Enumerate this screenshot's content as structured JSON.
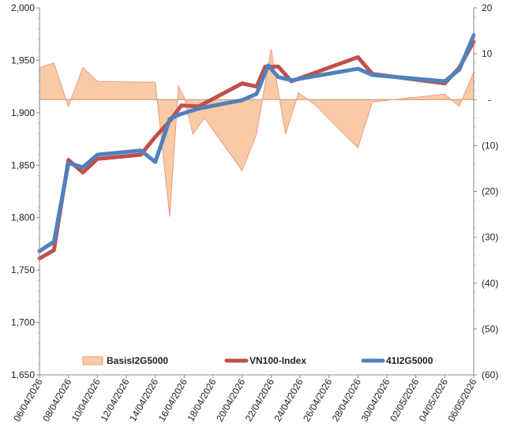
{
  "chart_data": {
    "type": "line",
    "dual_axis": true,
    "x_ticks": [
      "06/04/2026",
      "08/04/2026",
      "10/04/2026",
      "12/04/2026",
      "14/04/2026",
      "16/04/2026",
      "18/04/2026",
      "20/04/2026",
      "22/04/2026",
      "24/04/2026",
      "26/04/2026",
      "28/04/2026",
      "30/04/2026",
      "02/05/2026",
      "04/05/2026",
      "06/05/2026"
    ],
    "x_range": [
      "06/04/2026",
      "06/05/2026"
    ],
    "y_left": {
      "min": 1650,
      "max": 2000,
      "step": 50,
      "tick_labels": [
        "1,650",
        "1,700",
        "1,750",
        "1,800",
        "1,850",
        "1,900",
        "1,950",
        "2,000"
      ]
    },
    "y_right": {
      "min": -60,
      "max": 20,
      "step": 10,
      "tick_labels": [
        "(60)",
        "(50)",
        "(40)",
        "(30)",
        "(20)",
        "(10)",
        "-",
        "10",
        "20"
      ]
    },
    "grid": false,
    "legend_position": "bottom-inside",
    "series": [
      {
        "name": "BasisI2G5000",
        "kind": "area",
        "axis": "right",
        "color": "#f8cba6",
        "edge_color": "#e89c80",
        "points": [
          [
            "06/04/2026",
            7
          ],
          [
            "07/04/2026",
            8
          ],
          [
            "08/04/2026",
            -1.5
          ],
          [
            "09/04/2026",
            7
          ],
          [
            "10/04/2026",
            4
          ],
          [
            "13/04/2026",
            3.8
          ],
          [
            "14/04/2026",
            3.8
          ],
          [
            "15/04/2026",
            -25.5
          ],
          [
            "15.6/04/2026",
            3
          ],
          [
            "16/04/2026",
            0.5
          ],
          [
            "16.6/04/2026",
            -7.5
          ],
          [
            "17.4/04/2026",
            -4
          ],
          [
            "20/04/2026",
            -15.5
          ],
          [
            "21/04/2026",
            -7.5
          ],
          [
            "22/04/2026",
            11
          ],
          [
            "23/04/2026",
            -7.5
          ],
          [
            "23.9/04/2026",
            1.5
          ],
          [
            "25/04/2026",
            -1
          ],
          [
            "28/04/2026",
            -10.5
          ],
          [
            "29/04/2026",
            -0.5
          ],
          [
            "04/05/2026",
            1.2
          ],
          [
            "05/05/2026",
            -1.5
          ],
          [
            "06/05/2026",
            6
          ]
        ]
      },
      {
        "name": "VN100-Index",
        "kind": "line",
        "axis": "left",
        "color": "#c0504d",
        "points": [
          [
            "06/04/2026",
            1761
          ],
          [
            "07/04/2026",
            1769
          ],
          [
            "08/04/2026",
            1855
          ],
          [
            "09/04/2026",
            1843
          ],
          [
            "10/04/2026",
            1856
          ],
          [
            "13/04/2026",
            1860
          ],
          [
            "14/04/2026",
            1877
          ],
          [
            "15/04/2026",
            1892
          ],
          [
            "15.8/04/2026",
            1907
          ],
          [
            "17/04/2026",
            1906
          ],
          [
            "20/04/2026",
            1928
          ],
          [
            "21/04/2026",
            1925
          ],
          [
            "21.6/04/2026",
            1944
          ],
          [
            "22.5/04/2026",
            1944
          ],
          [
            "23.4/04/2026",
            1930
          ],
          [
            "28/04/2026",
            1953
          ],
          [
            "29/04/2026",
            1937
          ],
          [
            "04/05/2026",
            1928
          ],
          [
            "05/05/2026",
            1943
          ],
          [
            "06/05/2026",
            1968
          ]
        ]
      },
      {
        "name": "41I2G5000",
        "kind": "line",
        "axis": "left",
        "color": "#4f81bd",
        "points": [
          [
            "06/04/2026",
            1768
          ],
          [
            "07/04/2026",
            1777
          ],
          [
            "08/04/2026",
            1852
          ],
          [
            "09/04/2026",
            1848
          ],
          [
            "10/04/2026",
            1860
          ],
          [
            "13/04/2026",
            1864
          ],
          [
            "14/04/2026",
            1853
          ],
          [
            "15/04/2026",
            1894
          ],
          [
            "15.6/04/2026",
            1898
          ],
          [
            "17/04/2026",
            1904
          ],
          [
            "20/04/2026",
            1912
          ],
          [
            "21/04/2026",
            1918
          ],
          [
            "21.8/04/2026",
            1945
          ],
          [
            "22.5/04/2026",
            1934
          ],
          [
            "23.4/04/2026",
            1931
          ],
          [
            "28/04/2026",
            1942
          ],
          [
            "29/04/2026",
            1936
          ],
          [
            "04/05/2026",
            1930
          ],
          [
            "05/05/2026",
            1941
          ],
          [
            "06/05/2026",
            1974
          ]
        ]
      }
    ]
  }
}
